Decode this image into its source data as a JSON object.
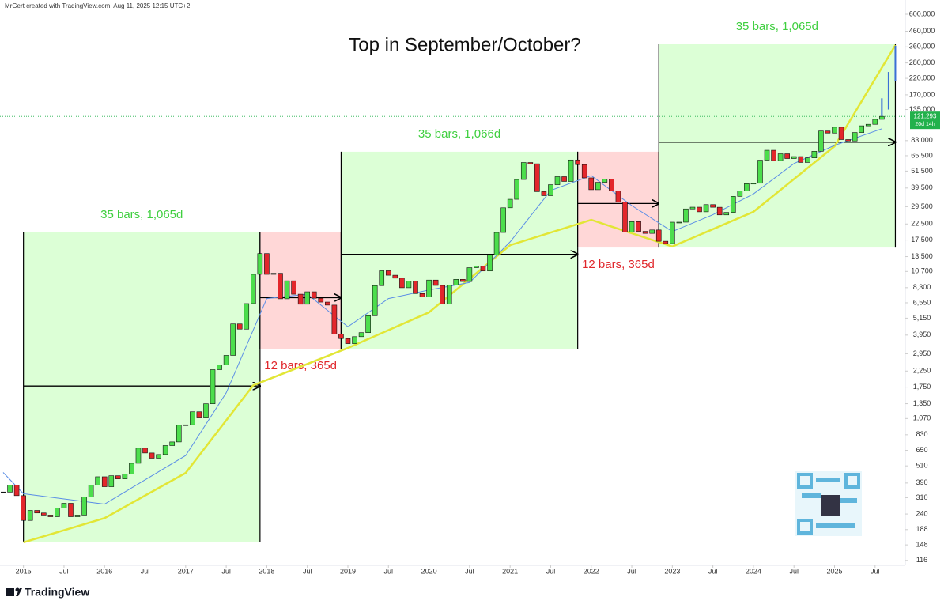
{
  "header": "MrGert created with TradingView.com, Aug 11, 2025 12:15 UTC+2",
  "footer": "TradingView",
  "chart_data": {
    "type": "candlestick",
    "title": "Top in September/October?",
    "log_scale": true,
    "up_color": "#4cde4c",
    "down_color": "#e3262b",
    "x": [
      "2014-10",
      "2014-11",
      "2014-12",
      "2015-01",
      "2015-02",
      "2015-03",
      "2015-04",
      "2015-05",
      "2015-06",
      "2015-07",
      "2015-08",
      "2015-09",
      "2015-10",
      "2015-11",
      "2015-12",
      "2016-01",
      "2016-02",
      "2016-03",
      "2016-04",
      "2016-05",
      "2016-06",
      "2016-07",
      "2016-08",
      "2016-09",
      "2016-10",
      "2016-11",
      "2016-12",
      "2017-01",
      "2017-02",
      "2017-03",
      "2017-04",
      "2017-05",
      "2017-06",
      "2017-07",
      "2017-08",
      "2017-09",
      "2017-10",
      "2017-11",
      "2017-12",
      "2018-01",
      "2018-02",
      "2018-03",
      "2018-04",
      "2018-05",
      "2018-06",
      "2018-07",
      "2018-08",
      "2018-09",
      "2018-10",
      "2018-11",
      "2018-12",
      "2019-01",
      "2019-02",
      "2019-03",
      "2019-04",
      "2019-05",
      "2019-06",
      "2019-07",
      "2019-08",
      "2019-09",
      "2019-10",
      "2019-11",
      "2019-12",
      "2020-01",
      "2020-02",
      "2020-03",
      "2020-04",
      "2020-05",
      "2020-06",
      "2020-07",
      "2020-08",
      "2020-09",
      "2020-10",
      "2020-11",
      "2020-12",
      "2021-01",
      "2021-02",
      "2021-03",
      "2021-04",
      "2021-05",
      "2021-06",
      "2021-07",
      "2021-08",
      "2021-09",
      "2021-10",
      "2021-11",
      "2021-12",
      "2022-01",
      "2022-02",
      "2022-03",
      "2022-04",
      "2022-05",
      "2022-06",
      "2022-07",
      "2022-08",
      "2022-09",
      "2022-10",
      "2022-11",
      "2022-12",
      "2023-01",
      "2023-02",
      "2023-03",
      "2023-04",
      "2023-05",
      "2023-06",
      "2023-07",
      "2023-08",
      "2023-09",
      "2023-10",
      "2023-11",
      "2023-12",
      "2024-01",
      "2024-02",
      "2024-03",
      "2024-04",
      "2024-05",
      "2024-06",
      "2024-07",
      "2024-08",
      "2024-09",
      "2024-10",
      "2024-11",
      "2024-12",
      "2025-01",
      "2025-02",
      "2025-03",
      "2025-04",
      "2025-05",
      "2025-06",
      "2025-07",
      "2025-08"
    ],
    "values": [
      338,
      378,
      320,
      217,
      254,
      244,
      236,
      230,
      263,
      284,
      230,
      236,
      314,
      377,
      430,
      368,
      437,
      416,
      448,
      531,
      673,
      624,
      575,
      609,
      701,
      742,
      964,
      970,
      1190,
      1080,
      1348,
      2300,
      2480,
      2875,
      4703,
      4338,
      6468,
      10233,
      14156,
      10221,
      10397,
      6973,
      9240,
      7494,
      6404,
      7780,
      7037,
      6625,
      6317,
      4017,
      3742,
      3457,
      3854,
      4105,
      5351,
      8574,
      10817,
      10085,
      9631,
      8293,
      9199,
      7569,
      7194,
      9350,
      8600,
      6410,
      8629,
      9454,
      9138,
      11351,
      11656,
      10779,
      13805,
      19700,
      28990,
      33114,
      45137,
      58918,
      57750,
      37332,
      35040,
      41626,
      47167,
      43790,
      61318,
      57005,
      46306,
      38483,
      43194,
      45538,
      37714,
      31792,
      19785,
      23336,
      20050,
      19423,
      20491,
      17168,
      16548,
      23139,
      23147,
      28478,
      29268,
      27220,
      30472,
      29232,
      25940,
      26967,
      34667,
      37712,
      42265,
      42582,
      61130,
      71333,
      60636,
      67491,
      62678,
      64619,
      58969,
      63329,
      70215,
      96449,
      93429,
      102405,
      84373,
      82548,
      94207,
      104638,
      107135,
      115758,
      121293
    ],
    "price_label": {
      "value": 121293,
      "label": "121,293",
      "color": "#22b14c"
    },
    "countdown": "20d 14h",
    "curves": [
      {
        "color": "#e2e636",
        "x": [
          "2015-01",
          "2016-01",
          "2017-01",
          "2017-11",
          "2019-01",
          "2020-01",
          "2021-01",
          "2022-01",
          "2023-01",
          "2024-01",
          "2025-01",
          "2025-10"
        ],
        "values": [
          154,
          225,
          457,
          1800,
          3230,
          5640,
          16150,
          24000,
          15800,
          27200,
          75900,
          370000
        ]
      },
      {
        "color": "#5b8ee6",
        "x": [
          "2014-10",
          "2015-01",
          "2016-01",
          "2017-01",
          "2017-07",
          "2018-01",
          "2018-07",
          "2019-01",
          "2019-07",
          "2020-01",
          "2020-07",
          "2021-01",
          "2021-07",
          "2022-01",
          "2022-07",
          "2023-01",
          "2023-07",
          "2024-01",
          "2024-07",
          "2025-01",
          "2025-08"
        ],
        "values": [
          460,
          330,
          280,
          600,
          1600,
          7000,
          7500,
          4500,
          7000,
          8000,
          9000,
          17000,
          38000,
          48000,
          30000,
          20000,
          26000,
          36000,
          58000,
          77000,
          100000
        ]
      }
    ],
    "zones": [
      {
        "start": "2015-01",
        "end": "2017-12",
        "low": 155,
        "high": 19700,
        "color": "#dcffd6",
        "label": "35 bars, 1,065d",
        "label_color": "#3fcf3f",
        "arrow": 1780
      },
      {
        "start": "2017-12",
        "end": "2018-12",
        "low": 3190,
        "high": 19700,
        "color": "#ffd7d7",
        "label": "12 bars, 365d",
        "label_color": "#e0262b",
        "arrow": 7100
      },
      {
        "start": "2018-12",
        "end": "2021-11",
        "low": 3190,
        "high": 69700,
        "color": "#dcffd6",
        "label": "35 bars, 1,066d",
        "label_color": "#3fcf3f",
        "arrow": 14000
      },
      {
        "start": "2021-11",
        "end": "2022-11",
        "low": 15560,
        "high": 69700,
        "color": "#ffd7d7",
        "label": "12 bars, 365d",
        "label_color": "#e0262b",
        "arrow": 31000
      },
      {
        "start": "2022-11",
        "end": "2025-10",
        "low": 15560,
        "high": 375000,
        "color": "#dcffd6",
        "label": "35 bars, 1,065d",
        "label_color": "#3fcf3f",
        "arrow": 81000
      }
    ],
    "projection": {
      "color": "#3b6fd6",
      "x": [
        "2025-08",
        "2025-09",
        "2025-10"
      ],
      "low": [
        121000,
        135000,
        210000
      ],
      "high": [
        161000,
        243000,
        366000
      ]
    },
    "xlim": [
      "2014-10",
      "2025-11"
    ],
    "ylim": [
      101,
      750000
    ],
    "xticks": [
      {
        "value": "2015-01",
        "label": "2015"
      },
      {
        "value": "2015-07",
        "label": "Jul"
      },
      {
        "value": "2016-01",
        "label": "2016"
      },
      {
        "value": "2016-07",
        "label": "Jul"
      },
      {
        "value": "2017-01",
        "label": "2017"
      },
      {
        "value": "2017-07",
        "label": "Jul"
      },
      {
        "value": "2018-01",
        "label": "2018"
      },
      {
        "value": "2018-07",
        "label": "Jul"
      },
      {
        "value": "2019-01",
        "label": "2019"
      },
      {
        "value": "2019-07",
        "label": "Jul"
      },
      {
        "value": "2020-01",
        "label": "2020"
      },
      {
        "value": "2020-07",
        "label": "Jul"
      },
      {
        "value": "2021-01",
        "label": "2021"
      },
      {
        "value": "2021-07",
        "label": "Jul"
      },
      {
        "value": "2022-01",
        "label": "2022"
      },
      {
        "value": "2022-07",
        "label": "Jul"
      },
      {
        "value": "2023-01",
        "label": "2023"
      },
      {
        "value": "2023-07",
        "label": "Jul"
      },
      {
        "value": "2024-01",
        "label": "2024"
      },
      {
        "value": "2024-07",
        "label": "Jul"
      },
      {
        "value": "2025-01",
        "label": "2025"
      },
      {
        "value": "2025-07",
        "label": "Jul"
      }
    ],
    "yticks": [
      {
        "value": 600000,
        "label": "600,000"
      },
      {
        "value": 460000,
        "label": "460,000"
      },
      {
        "value": 360000,
        "label": "360,000"
      },
      {
        "value": 280000,
        "label": "280,000"
      },
      {
        "value": 220000,
        "label": "220,000"
      },
      {
        "value": 170000,
        "label": "170,000"
      },
      {
        "value": 135000,
        "label": "135,000"
      },
      {
        "value": 83000,
        "label": "83,000"
      },
      {
        "value": 65500,
        "label": "65,500"
      },
      {
        "value": 51500,
        "label": "51,500"
      },
      {
        "value": 39500,
        "label": "39,500"
      },
      {
        "value": 29500,
        "label": "29,500"
      },
      {
        "value": 22500,
        "label": "22,500"
      },
      {
        "value": 17500,
        "label": "17,500"
      },
      {
        "value": 13500,
        "label": "13,500"
      },
      {
        "value": 10700,
        "label": "10,700"
      },
      {
        "value": 8300,
        "label": "8,300"
      },
      {
        "value": 6550,
        "label": "6,550"
      },
      {
        "value": 5150,
        "label": "5,150"
      },
      {
        "value": 3950,
        "label": "3,950"
      },
      {
        "value": 2950,
        "label": "2,950"
      },
      {
        "value": 2250,
        "label": "2,250"
      },
      {
        "value": 1750,
        "label": "1,750"
      },
      {
        "value": 1350,
        "label": "1,350"
      },
      {
        "value": 1070,
        "label": "1,070"
      },
      830,
      650,
      510,
      390,
      310,
      240,
      188,
      148,
      116
    ]
  }
}
